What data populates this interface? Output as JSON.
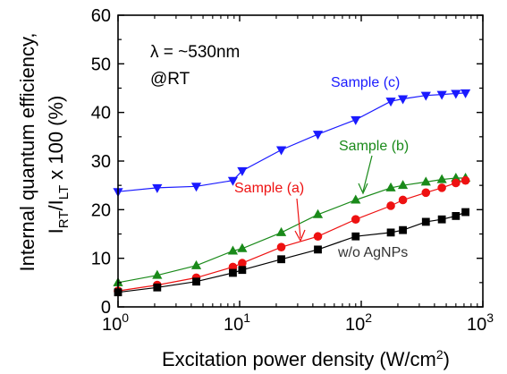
{
  "chart_data": {
    "type": "line",
    "xscale": "log",
    "xlim": [
      1,
      1000
    ],
    "ylim": [
      0,
      60
    ],
    "xticks": [
      1,
      10,
      100,
      1000
    ],
    "yticks": [
      0,
      10,
      20,
      30,
      40,
      50,
      60
    ],
    "xtick_labels": [
      {
        "base": "10",
        "exp": "0"
      },
      {
        "base": "10",
        "exp": "1"
      },
      {
        "base": "10",
        "exp": "2"
      },
      {
        "base": "10",
        "exp": "3"
      }
    ],
    "ytick_labels": [
      "0",
      "10",
      "20",
      "30",
      "40",
      "50",
      "60"
    ],
    "xlabel": {
      "main": "Excitation power density (W/cm",
      "sup": "2",
      "tail": ")"
    },
    "ylabel": {
      "line1": "Internal quantum efficiency,",
      "line2_parts": [
        {
          "t": "I",
          "s": "normal"
        },
        {
          "t": "RT",
          "s": "sub"
        },
        {
          "t": "/I",
          "s": "normal"
        },
        {
          "t": "LT",
          "s": "sub"
        },
        {
          "t": " x 100 (%)",
          "s": "normal"
        }
      ]
    },
    "annotations": [
      "λ = ~530nm",
      "@RT"
    ],
    "grid": false,
    "series": [
      {
        "name": "Sample (c)",
        "color": "#1a1aff",
        "marker": "triangle-down",
        "x": [
          1,
          2.1,
          4.4,
          8.8,
          10.5,
          22,
          44,
          90,
          175,
          220,
          340,
          460,
          600,
          720
        ],
        "y": [
          23.7,
          24.5,
          24.8,
          26.0,
          28.0,
          32.3,
          35.5,
          38.5,
          42.3,
          42.8,
          43.5,
          43.7,
          43.9,
          44.0
        ]
      },
      {
        "name": "Sample (b)",
        "color": "#1a8a1a",
        "marker": "triangle-up",
        "x": [
          1,
          2.1,
          4.4,
          8.8,
          10.5,
          22,
          44,
          90,
          175,
          220,
          340,
          460,
          600,
          720
        ],
        "y": [
          5.0,
          6.5,
          8.5,
          11.5,
          12.0,
          15.3,
          19.0,
          22.0,
          24.5,
          25.0,
          25.7,
          26.2,
          26.5,
          26.5
        ]
      },
      {
        "name": "Sample (a)",
        "color": "#ee1111",
        "marker": "circle",
        "x": [
          1,
          2.1,
          4.4,
          8.8,
          10.5,
          22,
          44,
          90,
          175,
          220,
          340,
          460,
          600,
          720
        ],
        "y": [
          3.3,
          4.5,
          6.0,
          8.2,
          9.0,
          12.3,
          14.5,
          18.0,
          20.8,
          22.0,
          23.5,
          24.5,
          25.5,
          26.0
        ]
      },
      {
        "name": "w/o AgNPs",
        "color": "#000000",
        "marker": "square",
        "x": [
          1,
          2.1,
          4.4,
          8.8,
          10.5,
          22,
          44,
          90,
          175,
          220,
          340,
          460,
          600,
          720
        ],
        "y": [
          3.0,
          4.0,
          5.2,
          7.0,
          7.6,
          9.8,
          11.8,
          14.5,
          15.3,
          15.8,
          17.5,
          18.0,
          18.7,
          19.5
        ]
      }
    ]
  }
}
